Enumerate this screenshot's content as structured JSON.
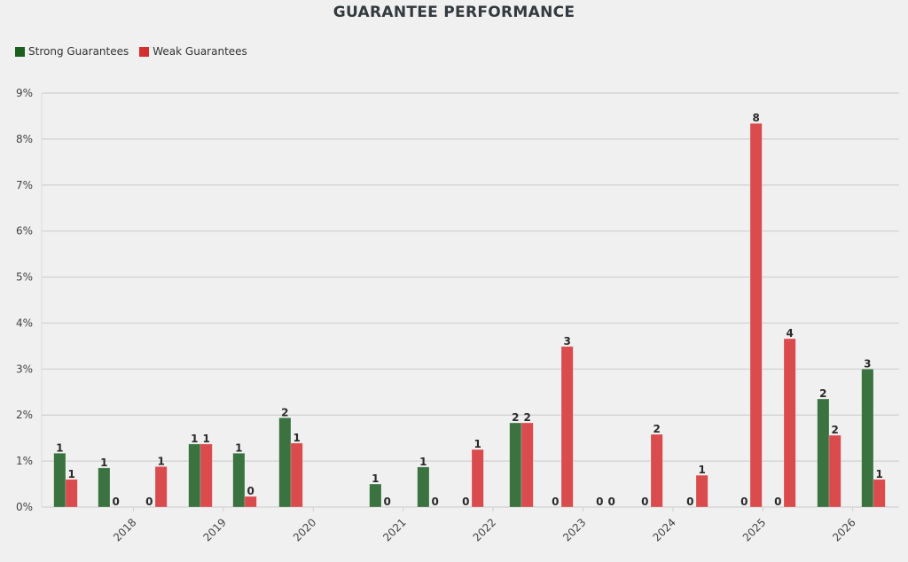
{
  "title": "GUARANTEE PERFORMANCE",
  "legend": [
    {
      "label": "Strong Guarantees",
      "color": "#1b5e20"
    },
    {
      "label": "Weak Guarantees",
      "color": "#d32f2f"
    }
  ],
  "colors": {
    "strong_bar": "#3a7340",
    "weak_bar": "#d94b4d",
    "grid": "#d0d0d0",
    "background": "#f0f0f0"
  },
  "chart_data": {
    "type": "bar",
    "title": "GUARANTEE PERFORMANCE",
    "xlabel": "",
    "ylabel": "",
    "ylim": [
      0,
      9
    ],
    "y_ticks": [
      "0%",
      "1%",
      "2%",
      "3%",
      "4%",
      "5%",
      "6%",
      "7%",
      "8%",
      "9%"
    ],
    "x_ticks": [
      "2018",
      "2019",
      "2020",
      "2021",
      "2022",
      "2023",
      "2024",
      "2025",
      "2026"
    ],
    "grid": true,
    "legend_position": "top-left",
    "group_x_positions": [
      74,
      124,
      175,
      226,
      276,
      328,
      379,
      430,
      484,
      532,
      588,
      633,
      683,
      734,
      785,
      846,
      884,
      935,
      985
    ],
    "series": [
      {
        "name": "Strong Guarantees",
        "values": [
          1.17,
          0.85,
          0,
          1.37,
          1.17,
          1.94,
          null,
          0.5,
          0.87,
          0,
          1.83,
          0,
          0,
          0,
          0,
          0,
          0,
          2.35,
          3.0
        ],
        "labels": [
          "1",
          "1",
          "0",
          "1",
          "1",
          "2",
          "",
          "1",
          "1",
          "0",
          "2",
          "0",
          "0",
          "0",
          "0",
          "0",
          "0",
          "2",
          "3"
        ]
      },
      {
        "name": "Weak Guarantees",
        "values": [
          0.6,
          0,
          0.88,
          1.37,
          0.23,
          1.39,
          null,
          0,
          0,
          1.25,
          1.83,
          3.49,
          0,
          1.58,
          0.69,
          8.34,
          3.66,
          1.56,
          0.6
        ],
        "labels": [
          "1",
          "0",
          "1",
          "1",
          "0",
          "1",
          "",
          "0",
          "0",
          "1",
          "2",
          "3",
          "0",
          "2",
          "1",
          "8",
          "4",
          "2",
          "1"
        ]
      }
    ]
  }
}
